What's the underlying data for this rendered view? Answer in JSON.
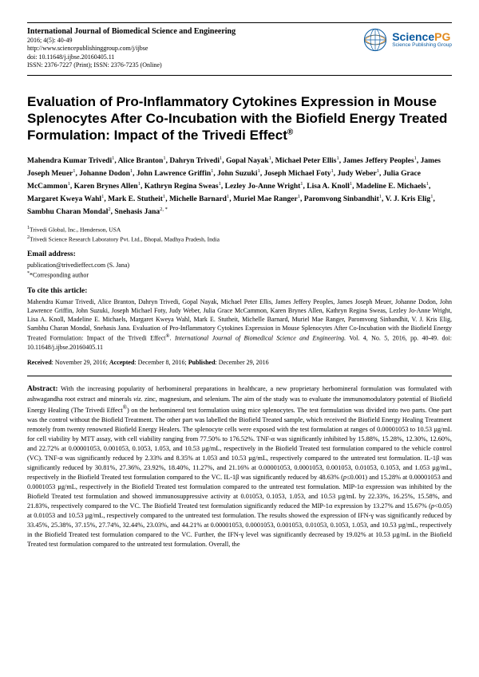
{
  "header": {
    "journal_name": "International Journal of Biomedical Science and Engineering",
    "issue": "2016; 4(5): 40-49",
    "url": "http://www.sciencepublishinggroup.com/j/ijbse",
    "doi": "doi: 10.11648/j.ijbse.20160405.11",
    "issn": "ISSN: 2376-7227 (Print); ISSN: 2376-7235 (Online)",
    "logo_main": "Science",
    "logo_pg": "PG",
    "logo_sub": "Science Publishing Group"
  },
  "title_html": "Evaluation of Pro-Inflammatory Cytokines Expression in Mouse Splenocytes After Co-Incubation with the Biofield Energy Treated Formulation: Impact of the Trivedi Effect<sup>®</sup>",
  "authors_html": "Mahendra Kumar Trivedi<sup>1</sup>, Alice Branton<sup>1</sup>, Dahryn Trivedi<sup>1</sup>, Gopal Nayak<sup>1</sup>, Michael Peter Ellis<sup>1</sup>, James Jeffery Peoples<sup>1</sup>, James Joseph Meuer<sup>1</sup>, Johanne Dodon<sup>1</sup>, John Lawrence Griffin<sup>1</sup>, John Suzuki<sup>1</sup>, Joseph Michael Foty<sup>1</sup>, Judy Weber<sup>1</sup>, Julia Grace McCammon<sup>1</sup>, Karen Brynes Allen<sup>1</sup>, Kathryn Regina Sweas<sup>1</sup>, Lezley Jo-Anne Wright<sup>1</sup>, Lisa A. Knoll<sup>1</sup>, Madeline E. Michaels<sup>1</sup>, Margaret Kweya Wahl<sup>1</sup>, Mark E. Stutheit<sup>1</sup>, Michelle Barnard<sup>1</sup>, Muriel Mae Ranger<sup>1</sup>, Paromvong Sinbandhit<sup>1</sup>, V. J. Kris Elig<sup>1</sup>, Sambhu Charan Mondal<sup>2</sup>, Snehasis Jana<sup>2, *</sup>",
  "affiliations_html": "<sup>1</sup>Trivedi Global, Inc., Henderson, USA<br><sup>2</sup>Trivedi Science Research Laboratory Pvt. Ltd., Bhopal, Madhya Pradesh, India",
  "email": {
    "label": "Email address:",
    "line": "publication@trivedieffect.com (S. Jana)",
    "corr": "*Corresponding author"
  },
  "cite": {
    "label": "To cite this article:",
    "body_html": "Mahendra Kumar Trivedi, Alice Branton, Dahryn Trivedi, Gopal Nayak, Michael Peter Ellis, James Jeffery Peoples, James Joseph Meuer, Johanne Dodon, John Lawrence Griffin, John Suzuki, Joseph Michael Foty, Judy Weber, Julia Grace McCammon, Karen Brynes Allen, Kathryn Regina Sweas, Lezley Jo-Anne Wright, Lisa A. Knoll, Madeline E. Michaels, Margaret Kweya Wahl, Mark E. Stutheit, Michelle Barnard, Muriel Mae Ranger, Paromvong Sinbandhit, V. J. Kris Elig, Sambhu Charan Mondal, Snehasis Jana. Evaluation of Pro-Inflammatory Cytokines Expression in Mouse Splenocytes After Co-Incubation with the Biofield Energy Treated Formulation: Impact of the Trivedi Effect<sup>®</sup>. <i>International Journal of Biomedical Science and Engineering.</i> Vol. 4, No. 5, 2016, pp. 40-49. doi: 10.11648/j.ijbse.20160405.11"
  },
  "dates_html": "<b>Received</b>: November 29, 2016; <b>Accepted</b>: December 8, 2016; <b>Published</b>: December 29, 2016",
  "abstract": {
    "label": "Abstract:",
    "body_html": "With the increasing popularity of herbomineral preparations in healthcare, a new proprietary herbomineral formulation was formulated with ashwagandha root extract and minerals <i>viz.</i> zinc, magnesium, and selenium. The aim of the study was to evaluate the immunomodulatory potential of Biofield Energy Healing (The Trivedi Effect<sup>®</sup>) on the herbomineral test formulation using mice splenocytes. The test formulation was divided into two parts. One part was the control without the Biofield Treatment. The other part was labelled the Biofield Treated sample, which received the Biofield Energy Healing Treatment remotely from twenty renowned Biofield Energy Healers. The splenocyte cells were exposed with the test formulation at ranges of 0.00001053 to 10.53 µg/mL for cell viability by MTT assay, with cell viability ranging from 77.50% to 176.52%. TNF-α was significantly inhibited by 15.88%, 15.28%, 12.30%, 12.60%, and 22.72% at 0.00001053, 0.001053, 0.1053, 1.053, and 10.53 µg/mL, respectively in the Biofield Treated test formulation compared to the vehicle control (VC). TNF-α was significantly reduced by 2.33% and 8.35% at 1.053 and 10.53 µg/mL, respectively compared to the untreated test formulation. IL-1β was significantly reduced by 30.81%, 27.36%, 23.92%, 18.40%, 11.27%, and 21.16% at 0.00001053, 0.0001053, 0.001053, 0.01053, 0.1053, and 1.053 µg/mL, respectively in the Biofield Treated test formulation compared to the VC. IL-1β was significantly reduced by 48.63% (<i>p</i>≤0.001) and 15.28% at 0.00001053 and 0.0001053 µg/mL, respectively in the Biofield Treated test formulation compared to the untreated test formulation. MIP-1α expression was inhibited by the Biofield Treated test formulation and showed immunosuppressive activity at 0.01053, 0.1053, 1.053, and 10.53 µg/mL by 22.33%, 16.25%, 15.58%, and 21.83%, respectively compared to the VC. The Biofield Treated test formulation significantly reduced the MIP-1α expression by 13.27% and 15.67% (<i>p</i>&lt;0.05) at 0.01053 and 10.53 µg/mL, respectively compared to the untreated test formulation. The results showed the expression of IFN-γ was significantly reduced by 33.45%, 25.38%, 37.15%, 27.74%, 32.44%, 23.03%, and 44.21% at 0.00001053, 0.0001053, 0.001053, 0.01053, 0.1053, 1.053, and 10.53 µg/mL, respectively in the Biofield Treated test formulation compared to the VC. Further, the IFN-γ level was significantly decreased by 19.02% at 10.53 µg/mL in the Biofield Treated test formulation compared to the untreated test formulation. Overall, the"
  }
}
